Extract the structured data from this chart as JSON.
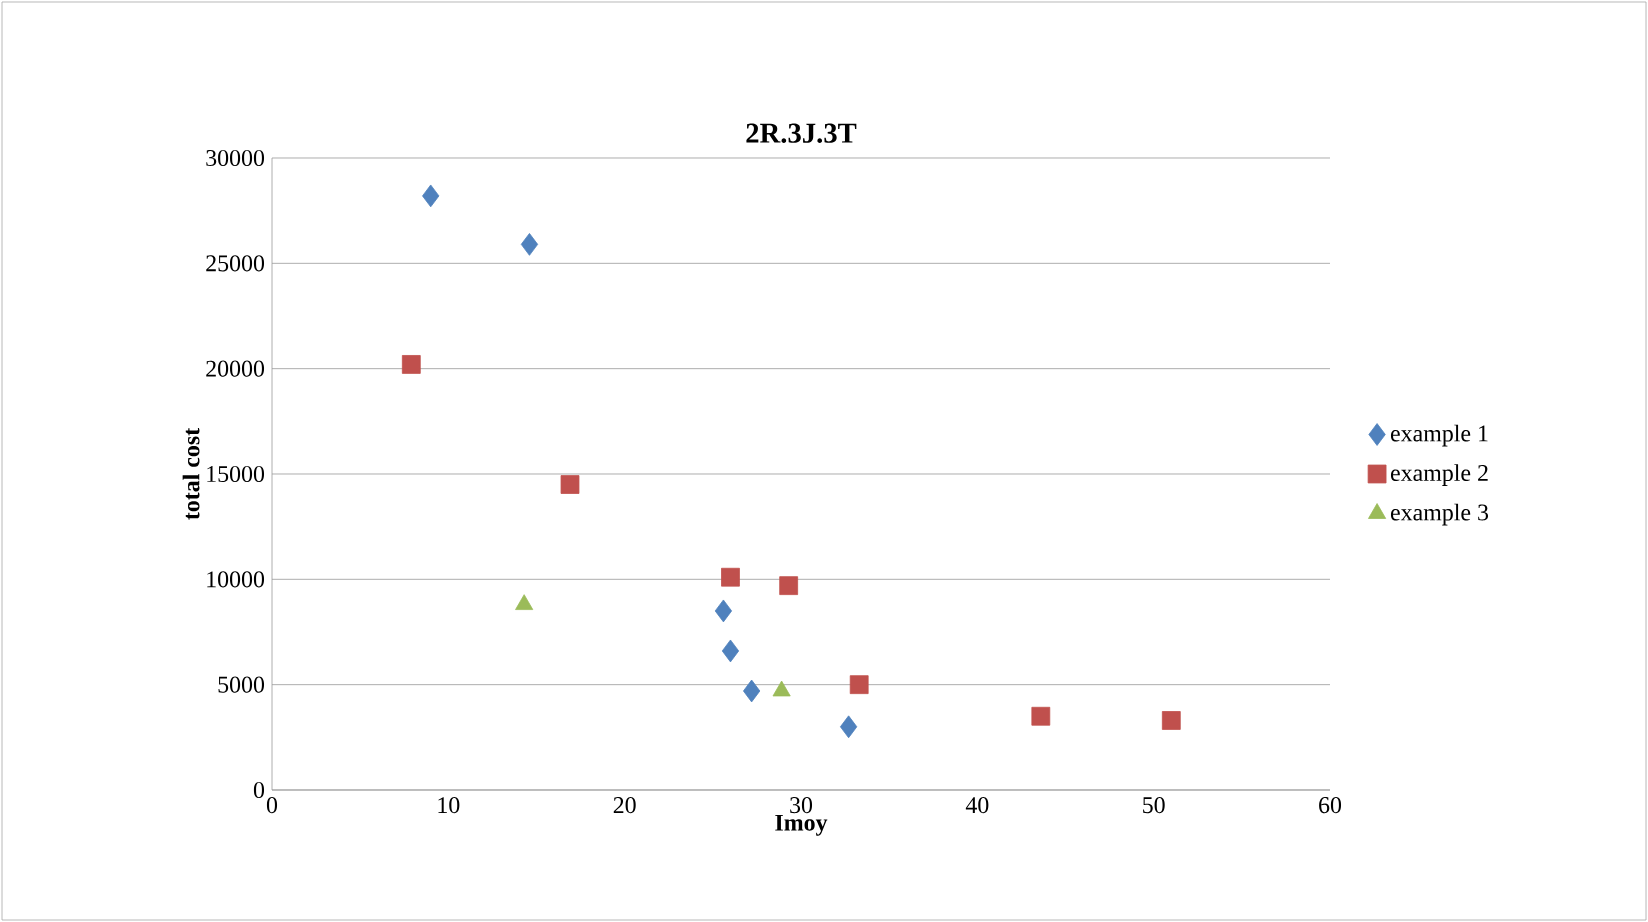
{
  "chart_data": {
    "type": "scatter",
    "title": "2R.3J.3T",
    "xlabel": "Imoy",
    "ylabel": "total cost",
    "xlim": [
      0,
      60
    ],
    "xticks": [
      0,
      10,
      20,
      30,
      40,
      50,
      60
    ],
    "ylim": [
      0,
      30000
    ],
    "yticks": [
      0,
      5000,
      10000,
      15000,
      20000,
      25000,
      30000
    ],
    "grid": "y",
    "legend": "right",
    "series": [
      {
        "name": "example 1",
        "color": "#4f81bd",
        "marker": "diamond",
        "x": [
          9,
          14.6,
          25.6,
          26,
          27.2,
          32.7
        ],
        "values": [
          28200,
          25900,
          8500,
          6600,
          4700,
          3000
        ]
      },
      {
        "name": "example 2",
        "color": "#c0504d",
        "marker": "square",
        "x": [
          7.9,
          16.9,
          26,
          29.3,
          33.3,
          43.6,
          51
        ],
        "values": [
          20200,
          14500,
          10100,
          9700,
          5000,
          3500,
          3300
        ]
      },
      {
        "name": "example 3",
        "color": "#9bbb59",
        "marker": "triangle",
        "x": [
          14.3,
          28.9
        ],
        "values": [
          8800,
          4700
        ]
      }
    ]
  }
}
